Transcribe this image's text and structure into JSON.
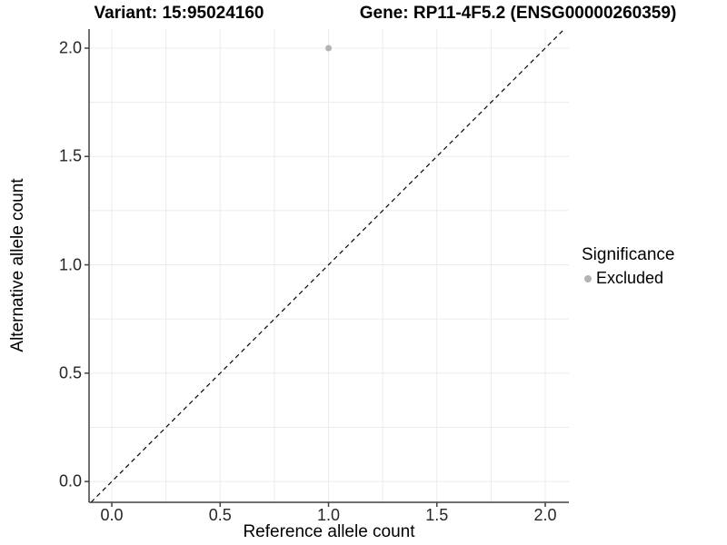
{
  "chart_data": {
    "type": "scatter",
    "title_left": "Variant: 15:95024160",
    "title_right": "Gene: RP11-4F5.2 (ENSG00000260359)",
    "xlabel": "Reference allele count",
    "ylabel": "Alternative allele count",
    "xlim": [
      -0.105,
      2.109
    ],
    "ylim": [
      -0.096,
      2.088
    ],
    "x_tick_values": [
      0.0,
      0.5,
      1.0,
      1.5,
      2.0
    ],
    "x_tick_labels": [
      "0.0",
      "0.5",
      "1.0",
      "1.5",
      "2.0"
    ],
    "y_tick_values": [
      0.0,
      0.5,
      1.0,
      1.5,
      2.0
    ],
    "y_tick_labels": [
      "2.0",
      "1.5",
      "1.0",
      "0.5",
      "0.0"
    ],
    "grid": true,
    "grid_interval": 0.25,
    "grid_range": [
      0,
      2
    ],
    "legend_position": "right",
    "points": [
      {
        "x": 1.0,
        "y": 2.0,
        "series": "Excluded",
        "color": "#b3b3b3",
        "radius": 3.5
      }
    ],
    "identity_line": {
      "type": "y=x",
      "style": "dashed",
      "color": "#000000"
    }
  },
  "legend": {
    "title": "Significance",
    "items": [
      {
        "label": "Excluded",
        "color": "#b3b3b3",
        "marker": "circle"
      }
    ]
  },
  "colors": {
    "background": "#ffffff",
    "grid_line": "#ebebeb",
    "axis_line": "#404040",
    "tick_mark": "#404040",
    "tick_label": "#262626",
    "title_text": "#000000",
    "point_excluded": "#b3b3b3",
    "reference_line": "#000000"
  }
}
